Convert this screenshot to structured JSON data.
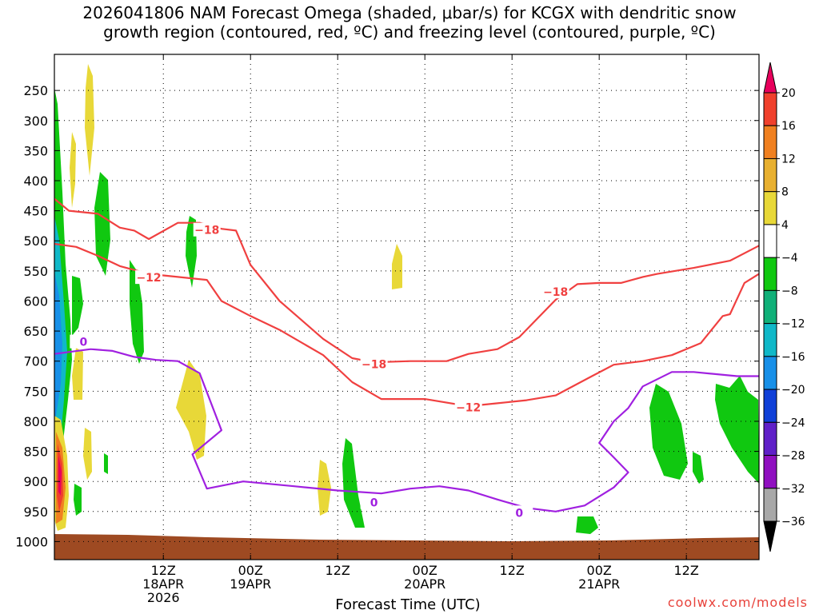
{
  "title_line1": "2026041806 NAM Forecast Omega (shaded, μbar/s) for KCGX with dendritic snow",
  "title_line2": "growth region (contoured, red, ºC) and freezing level (contoured, purple, ºC)",
  "credit": "coolwx.com/models",
  "chart_data": {
    "type": "time-height cross section",
    "xlabel": "Forecast Time (UTC)",
    "ylabel": "",
    "y_axis": "pressure (mb), reversed",
    "ylim": [
      1030,
      190
    ],
    "xlim_hours": [
      -9,
      88
    ],
    "grid": true,
    "y_ticks": [
      250,
      300,
      350,
      400,
      450,
      500,
      550,
      600,
      650,
      700,
      750,
      800,
      850,
      900,
      950,
      1000
    ],
    "x_ticks": [
      {
        "hour": 6,
        "lines": [
          "12Z",
          "18APR",
          "2026"
        ]
      },
      {
        "hour": 18,
        "lines": [
          "00Z",
          "19APR"
        ]
      },
      {
        "hour": 30,
        "lines": [
          "12Z"
        ]
      },
      {
        "hour": 42,
        "lines": [
          "00Z",
          "20APR"
        ]
      },
      {
        "hour": 54,
        "lines": [
          "12Z"
        ]
      },
      {
        "hour": 66,
        "lines": [
          "00Z",
          "21APR"
        ]
      },
      {
        "hour": 78,
        "lines": [
          "12Z"
        ]
      }
    ],
    "colorbar": {
      "labels": [
        "20",
        "16",
        "12",
        "8",
        "4",
        "−4",
        "−8",
        "−12",
        "−16",
        "−20",
        "−24",
        "−28",
        "−32",
        "−36"
      ],
      "colors": [
        "#e8005c",
        "#f0402c",
        "#f08020",
        "#e8b030",
        "#e8d838",
        "#ffffff",
        "#10c810",
        "#10b078",
        "#10b8c8",
        "#1890e8",
        "#1040d8",
        "#6020c8",
        "#9010c0",
        "#a8a8a8",
        "#000000"
      ]
    },
    "contours": [
      {
        "name": "-18",
        "color": "#f04040",
        "points": [
          [
            -9,
            430
          ],
          [
            -7,
            450
          ],
          [
            -3,
            455
          ],
          [
            0,
            478
          ],
          [
            2,
            483
          ],
          [
            4,
            497
          ],
          [
            8,
            470
          ],
          [
            11,
            470
          ],
          [
            14,
            480
          ],
          [
            16,
            483
          ],
          [
            18,
            540
          ],
          [
            22,
            600
          ],
          [
            28,
            663
          ],
          [
            32,
            695
          ],
          [
            35,
            702
          ],
          [
            40,
            700
          ],
          [
            45,
            700
          ],
          [
            48,
            688
          ],
          [
            52,
            680
          ],
          [
            55,
            660
          ],
          [
            60,
            598
          ],
          [
            63,
            572
          ],
          [
            66,
            570
          ],
          [
            69,
            570
          ],
          [
            72,
            560
          ],
          [
            74,
            555
          ],
          [
            79,
            545
          ],
          [
            84,
            533
          ],
          [
            88,
            508
          ]
        ],
        "labels": [
          {
            "x": 12,
            "y": 482,
            "text": "−18"
          },
          {
            "x": 35,
            "y": 705,
            "text": "−18"
          },
          {
            "x": 60,
            "y": 585,
            "text": "−18"
          }
        ]
      },
      {
        "name": "-12",
        "color": "#f04040",
        "points": [
          [
            -9,
            505
          ],
          [
            -6,
            510
          ],
          [
            -3,
            525
          ],
          [
            0,
            542
          ],
          [
            4,
            555
          ],
          [
            12,
            565
          ],
          [
            14,
            600
          ],
          [
            18,
            625
          ],
          [
            22,
            648
          ],
          [
            28,
            690
          ],
          [
            32,
            735
          ],
          [
            36,
            763
          ],
          [
            42,
            763
          ],
          [
            48,
            775
          ],
          [
            52,
            770
          ],
          [
            56,
            765
          ],
          [
            60,
            757
          ],
          [
            65,
            725
          ],
          [
            68,
            706
          ],
          [
            72,
            700
          ],
          [
            76,
            690
          ],
          [
            80,
            670
          ],
          [
            83,
            625
          ],
          [
            84,
            622
          ],
          [
            86,
            570
          ],
          [
            88,
            555
          ]
        ],
        "labels": [
          {
            "x": 4,
            "y": 561,
            "text": "−12"
          },
          {
            "x": 48,
            "y": 777,
            "text": "−12"
          }
        ]
      },
      {
        "name": "0",
        "color": "#a020e0",
        "points": [
          [
            -9,
            688
          ],
          [
            -4,
            680
          ],
          [
            -1,
            683
          ],
          [
            2,
            693
          ],
          [
            5,
            698
          ],
          [
            8,
            700
          ],
          [
            11,
            720
          ],
          [
            14,
            815
          ],
          [
            10,
            855
          ],
          [
            12,
            912
          ],
          [
            17,
            900
          ],
          [
            24,
            908
          ],
          [
            30,
            915
          ],
          [
            36,
            920
          ],
          [
            40,
            912
          ],
          [
            44,
            908
          ],
          [
            48,
            915
          ],
          [
            52,
            930
          ],
          [
            56,
            944
          ],
          [
            60,
            950
          ],
          [
            64,
            940
          ],
          [
            68,
            910
          ],
          [
            70,
            885
          ],
          [
            68,
            860
          ],
          [
            66,
            836
          ],
          [
            68,
            800
          ],
          [
            70,
            778
          ],
          [
            72,
            742
          ],
          [
            76,
            718
          ],
          [
            79,
            718
          ],
          [
            85,
            725
          ],
          [
            88,
            725
          ]
        ],
        "labels": [
          {
            "x": -5,
            "y": 668,
            "text": "0"
          },
          {
            "x": 35,
            "y": 935,
            "text": "0"
          },
          {
            "x": 55,
            "y": 952,
            "text": "0"
          }
        ]
      }
    ]
  }
}
